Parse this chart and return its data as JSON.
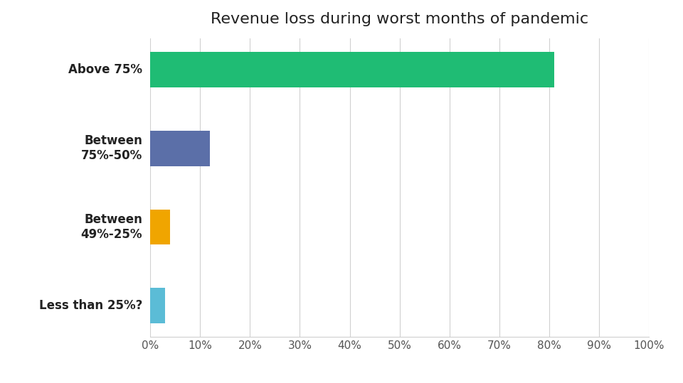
{
  "title": "Revenue loss during worst months of pandemic",
  "categories": [
    "Less than 25%?",
    "Between\n49%-25%",
    "Between\n75%-50%",
    "Above 75%"
  ],
  "values": [
    3,
    4,
    12,
    81
  ],
  "bar_colors": [
    "#5bbcd6",
    "#f0a500",
    "#5b6fa8",
    "#1fbc74"
  ],
  "xlim": [
    0,
    100
  ],
  "xtick_values": [
    0,
    10,
    20,
    30,
    40,
    50,
    60,
    70,
    80,
    90,
    100
  ],
  "xtick_labels": [
    "0%",
    "10%",
    "20%",
    "30%",
    "40%",
    "50%",
    "60%",
    "70%",
    "80%",
    "90%",
    "100%"
  ],
  "background_color": "#ffffff",
  "grid_color": "#d0d0d0",
  "title_fontsize": 16,
  "label_fontsize": 12,
  "tick_fontsize": 11,
  "bar_height": 0.45
}
